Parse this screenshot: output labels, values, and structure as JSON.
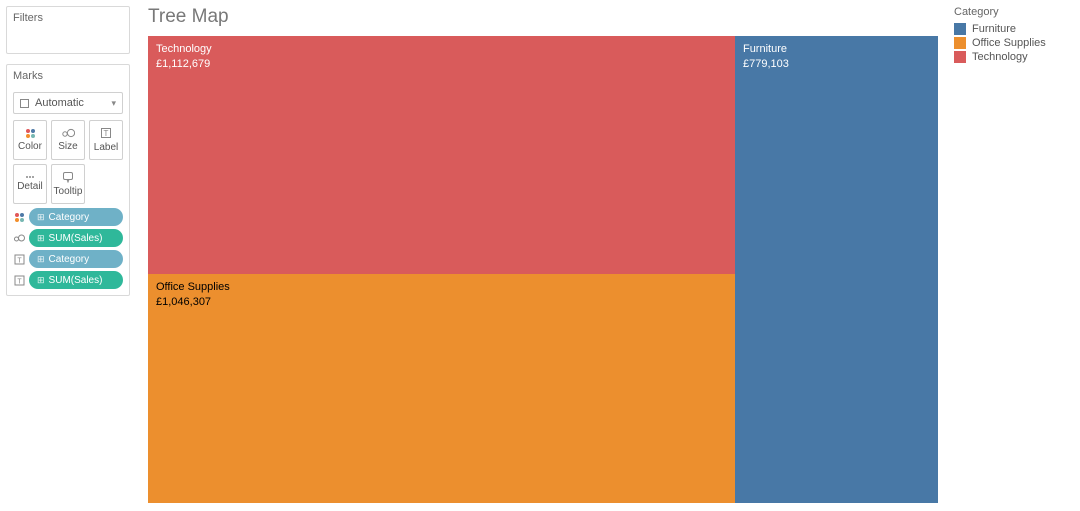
{
  "left": {
    "filters_title": "Filters",
    "marks_title": "Marks",
    "mark_type": "Automatic",
    "buttons": {
      "color": "Color",
      "size": "Size",
      "label": "Label",
      "detail": "Detail",
      "tooltip": "Tooltip"
    },
    "pills": [
      {
        "icon": "color",
        "label": "Category",
        "bg": "#6fb1c7"
      },
      {
        "icon": "size",
        "label": "SUM(Sales)",
        "bg": "#2fb89a"
      },
      {
        "icon": "label",
        "label": "Category",
        "bg": "#6fb1c7"
      },
      {
        "icon": "label",
        "label": "SUM(Sales)",
        "bg": "#2fb89a"
      }
    ],
    "pill_field_icon": "⊞"
  },
  "chart": {
    "title": "Tree Map",
    "type": "treemap",
    "background_color": "#ffffff",
    "label_fontsize": 11,
    "blocks": [
      {
        "name": "Technology",
        "value_label": "£1,112,679",
        "value": 1112679,
        "color": "#d95b5b",
        "text_color": "#ffffff",
        "left_pct": 0.0,
        "top_pct": 0.0,
        "width_pct": 74.3,
        "height_pct": 51.0
      },
      {
        "name": "Office Supplies",
        "value_label": "£1,046,307",
        "value": 1046307,
        "color": "#ec8f2e",
        "text_color": "#000000",
        "left_pct": 0.0,
        "top_pct": 51.0,
        "width_pct": 74.3,
        "height_pct": 49.0
      },
      {
        "name": "Furniture",
        "value_label": "£779,103",
        "value": 779103,
        "color": "#4878a6",
        "text_color": "#ffffff",
        "left_pct": 74.3,
        "top_pct": 0.0,
        "width_pct": 25.7,
        "height_pct": 100.0
      }
    ]
  },
  "legend": {
    "title": "Category",
    "items": [
      {
        "label": "Furniture",
        "color": "#4878a6"
      },
      {
        "label": "Office Supplies",
        "color": "#ec8f2e"
      },
      {
        "label": "Technology",
        "color": "#d95b5b"
      }
    ]
  }
}
